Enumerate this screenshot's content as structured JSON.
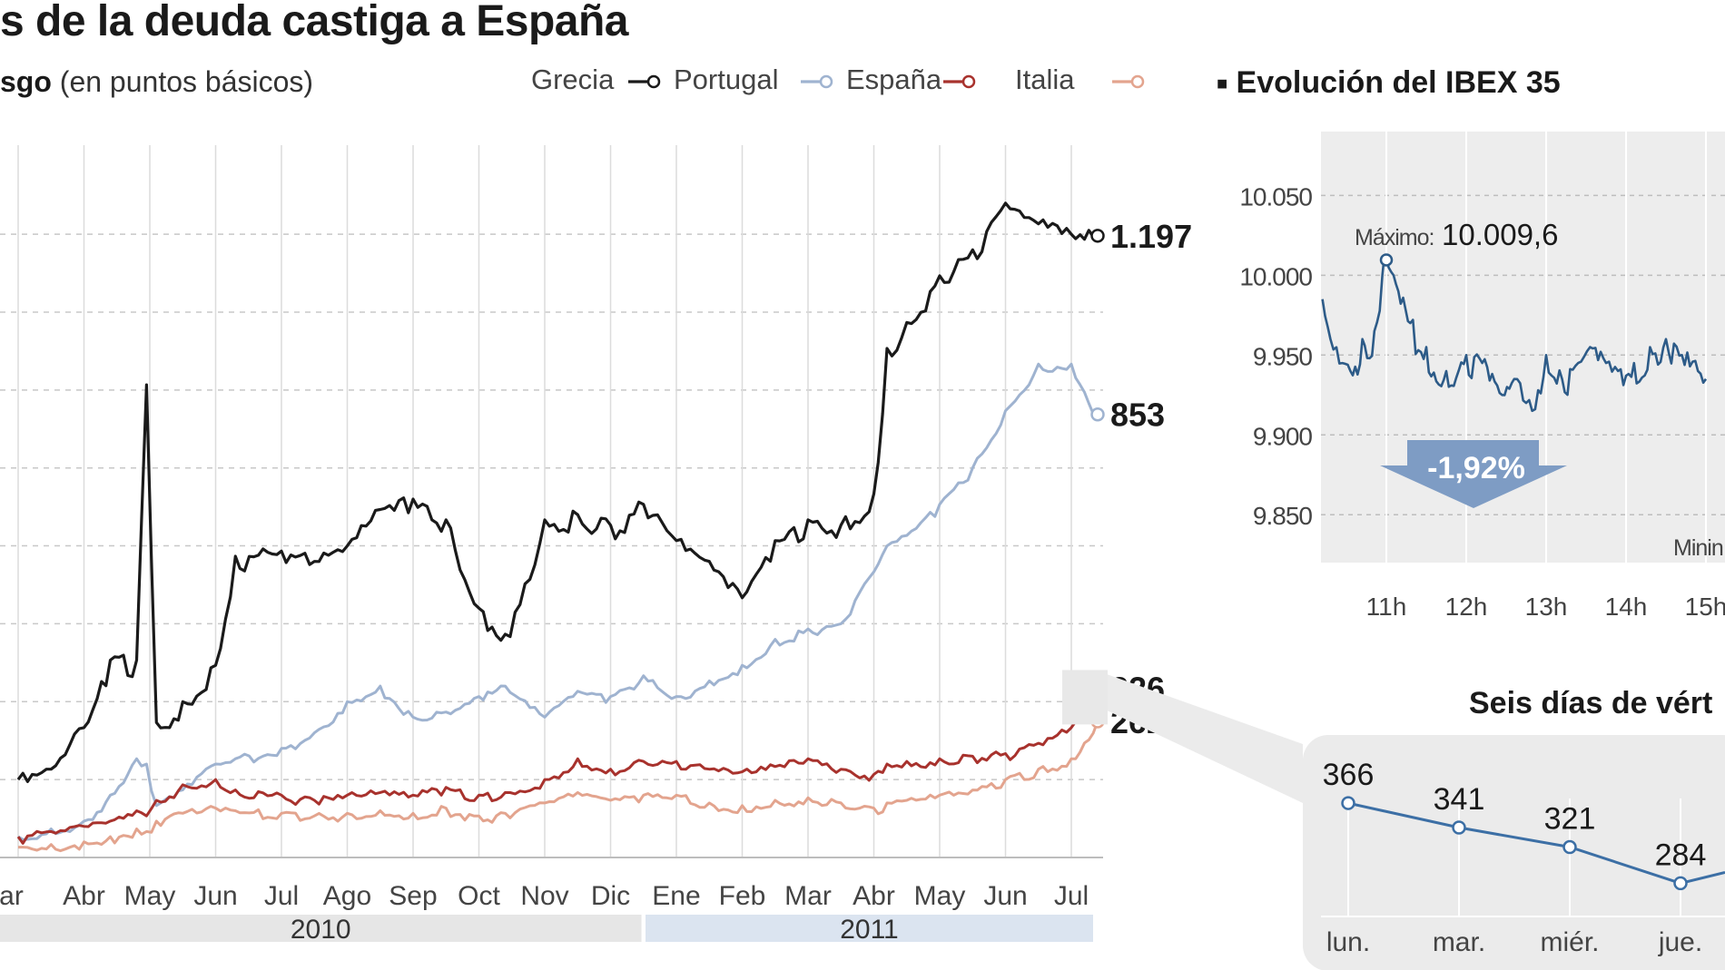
{
  "header": {
    "title": "s de la deuda castiga a España",
    "subtitle_bold": "sgo",
    "subtitle_rest": "(en puntos básicos)"
  },
  "legend": [
    {
      "name": "Grecia",
      "color": "#1a1a1a"
    },
    {
      "name": "Portugal",
      "color": "#9fb3d0"
    },
    {
      "name": "España",
      "color": "#a8322d"
    },
    {
      "name": "Italia",
      "color": "#e3a48e"
    }
  ],
  "ibex": {
    "title": "Evolución del IBEX 35",
    "max_label": "Máximo:",
    "max_value": "10.009,6",
    "change": "-1,92%",
    "min_label": "Minin"
  },
  "six_days": {
    "title": "Seis días de vért"
  },
  "chart_data": [
    {
      "type": "line",
      "title": "",
      "ylabel": "",
      "x_months": [
        "Mar",
        "Abr",
        "May",
        "Jun",
        "Jul",
        "Ago",
        "Sep",
        "Oct",
        "Nov",
        "Dic",
        "Ene",
        "Feb",
        "Mar",
        "Abr",
        "May",
        "Jun",
        "Jul"
      ],
      "years": [
        {
          "label": "2010",
          "from_month": 0,
          "to_month": 9
        },
        {
          "label": "2011",
          "from_month": 10,
          "to_month": 16
        }
      ],
      "ylim": [
        0,
        1450
      ],
      "x": [
        0,
        0.5,
        1,
        1.4,
        1.8,
        1.95,
        2.1,
        2.5,
        3,
        3.3,
        4,
        4.5,
        5,
        5.5,
        6,
        6.5,
        7,
        7.4,
        8,
        8.5,
        9,
        9.5,
        10,
        10.5,
        11,
        11.5,
        12,
        12.5,
        13,
        13.2,
        13.5,
        14,
        14.5,
        15,
        15.5,
        16,
        16.4
      ],
      "series": [
        {
          "name": "Grecia",
          "values": [
            150,
            170,
            250,
            380,
            380,
            910,
            260,
            300,
            370,
            580,
            590,
            570,
            600,
            670,
            690,
            650,
            480,
            430,
            650,
            660,
            640,
            680,
            610,
            570,
            500,
            610,
            650,
            640,
            700,
            980,
            1030,
            1120,
            1170,
            1260,
            1220,
            1200,
            1197
          ],
          "end_label": "1.197"
        },
        {
          "name": "Portugal",
          "values": [
            40,
            55,
            70,
            120,
            190,
            180,
            100,
            130,
            180,
            190,
            210,
            240,
            300,
            330,
            270,
            280,
            310,
            330,
            270,
            320,
            310,
            350,
            310,
            340,
            370,
            420,
            440,
            450,
            550,
            600,
            620,
            680,
            750,
            860,
            950,
            950,
            853
          ],
          "end_label": "853"
        },
        {
          "name": "España",
          "values": [
            40,
            50,
            60,
            70,
            90,
            80,
            110,
            140,
            150,
            130,
            120,
            110,
            120,
            125,
            120,
            135,
            120,
            125,
            150,
            190,
            170,
            185,
            185,
            170,
            165,
            175,
            190,
            170,
            160,
            180,
            185,
            190,
            195,
            200,
            220,
            250,
            326
          ],
          "end_label": "326"
        },
        {
          "name": "Italia",
          "values": [
            20,
            25,
            30,
            40,
            55,
            50,
            70,
            85,
            95,
            90,
            85,
            80,
            85,
            90,
            85,
            95,
            80,
            85,
            105,
            125,
            110,
            120,
            120,
            105,
            100,
            110,
            115,
            105,
            95,
            105,
            110,
            120,
            130,
            150,
            170,
            190,
            262
          ],
          "end_label": "262"
        }
      ]
    },
    {
      "type": "line",
      "title": "Evolución del IBEX 35",
      "categories": [
        "11h",
        "12h",
        "13h",
        "14h",
        "15h"
      ],
      "ylim": [
        9820,
        10090
      ],
      "yticks": [
        {
          "value": 9850,
          "label": "9.850"
        },
        {
          "value": 9900,
          "label": "9.900"
        },
        {
          "value": 9950,
          "label": "9.950"
        },
        {
          "value": 10000,
          "label": "10.000"
        },
        {
          "value": 10050,
          "label": "10.050"
        }
      ],
      "x": [
        -0.8,
        -0.7,
        -0.55,
        -0.45,
        -0.3,
        -0.15,
        -0.05,
        0,
        0.15,
        0.3,
        0.5,
        0.75,
        1,
        1.2,
        1.45,
        1.6,
        1.75,
        1.9,
        2,
        2.2,
        2.4,
        2.55,
        2.75,
        2.9,
        3.1,
        3.3,
        3.5,
        3.7,
        3.9,
        4
      ],
      "values": [
        9985,
        9960,
        9945,
        9940,
        9960,
        9965,
        10000,
        10009.6,
        9990,
        9970,
        9955,
        9940,
        9950,
        9945,
        9925,
        9935,
        9920,
        9928,
        9950,
        9935,
        9945,
        9955,
        9945,
        9940,
        9945,
        9955,
        9960,
        9950,
        9940,
        9935
      ],
      "max": {
        "x": 0,
        "value": 10009.6
      },
      "change_pct": -1.92
    },
    {
      "type": "line",
      "title": "Seis días de vért",
      "categories": [
        "lun.",
        "mar.",
        "miér.",
        "jue."
      ],
      "values": [
        366,
        341,
        321,
        284
      ],
      "data_labels": [
        "366",
        "341",
        "321",
        "284"
      ],
      "continues": 295
    }
  ]
}
